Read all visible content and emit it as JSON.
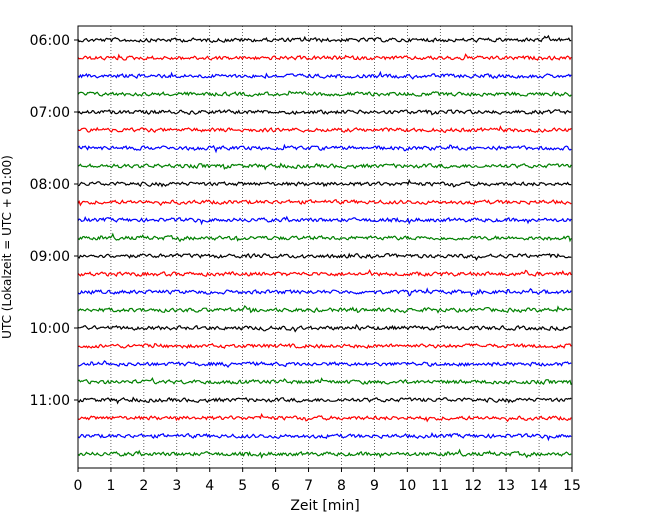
{
  "chart_data": {
    "type": "line",
    "title": "",
    "xlabel": "Zeit  [min]",
    "ylabel": "UTC (Lokalzeit = UTC + 01:00)",
    "xlim": [
      0,
      15
    ],
    "x_ticks": [
      0,
      1,
      2,
      3,
      4,
      5,
      6,
      7,
      8,
      9,
      10,
      11,
      12,
      13,
      14,
      15
    ],
    "y_tick_labels": [
      "06:00",
      "07:00",
      "08:00",
      "09:00",
      "10:00",
      "11:00"
    ],
    "trace_minutes_per_line": 15,
    "first_trace_start": "06:00",
    "trace_count": 24,
    "trace_colors": [
      "#000000",
      "#ff0000",
      "#0000ff",
      "#008000"
    ],
    "grid": "vertical dotted lines at each minute",
    "legend": "none"
  }
}
